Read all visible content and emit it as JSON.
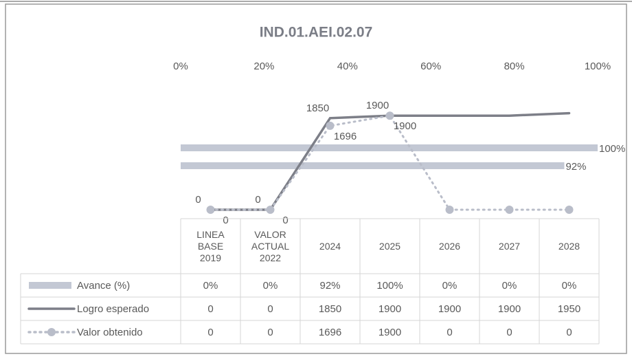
{
  "chart_data": {
    "type": "combo",
    "title": "IND.01.AEI.02.07",
    "categories": [
      "LINEA BASE 2019",
      "VALOR ACTUAL 2022",
      "2024",
      "2025",
      "2026",
      "2027",
      "2028"
    ],
    "xlim": [
      0,
      100
    ],
    "xticks": [
      {
        "value": 0,
        "label": "0%"
      },
      {
        "value": 20,
        "label": "20%"
      },
      {
        "value": 40,
        "label": "40%"
      },
      {
        "value": 60,
        "label": "60%"
      },
      {
        "value": 80,
        "label": "80%"
      },
      {
        "value": 100,
        "label": "100%"
      }
    ],
    "ylim": [
      0,
      2500
    ],
    "series": [
      {
        "name": "Avance (%)",
        "type": "bar",
        "color": "#c3c8d4",
        "values": [
          0,
          0,
          92,
          100,
          0,
          0,
          0
        ],
        "value_labels": [
          "0%",
          "0%",
          "92%",
          "100%",
          "0%",
          "0%",
          "0%"
        ]
      },
      {
        "name": "Logro esperado",
        "type": "line",
        "color": "#7d7f88",
        "dash": "solid",
        "values": [
          0,
          0,
          1850,
          1900,
          1900,
          1900,
          1950
        ]
      },
      {
        "name": "Valor obtenido",
        "type": "line",
        "color": "#b9bdc9",
        "dash": "dotted",
        "marker": "circle",
        "values": [
          0,
          0,
          1696,
          1900,
          0,
          0,
          0
        ]
      }
    ]
  }
}
